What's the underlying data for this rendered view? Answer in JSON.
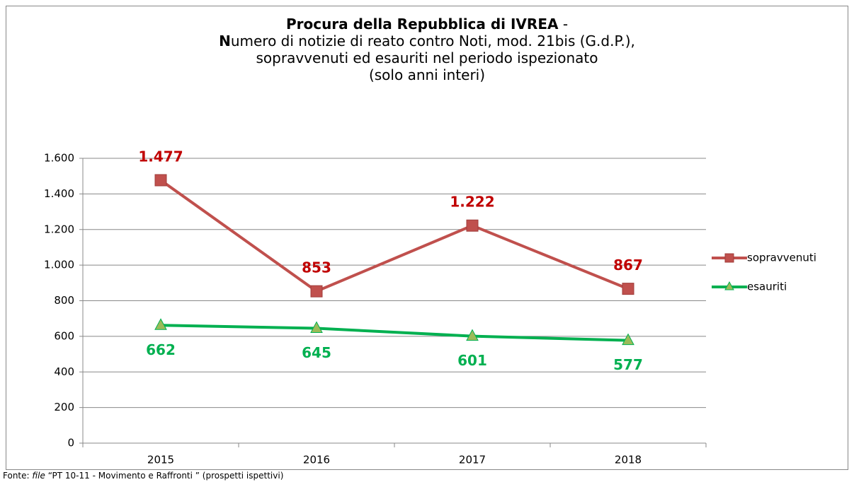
{
  "chart_data": {
    "type": "line",
    "title": "Procura della Repubblica di IVREA",
    "title_suffix": "-",
    "subtitle": [
      "Numero di notizie di reato contro Noti, mod. 21bis (G.d.P.),",
      "sopravvenuti ed esauriti nel periodo ispezionato",
      "(solo anni interi)"
    ],
    "categories": [
      "2015",
      "2016",
      "2017",
      "2018"
    ],
    "series": [
      {
        "name": "sopravvenuti",
        "color": "#c0504d",
        "label_color": "#c00000",
        "marker": "square",
        "values": [
          1477,
          853,
          1222,
          867
        ],
        "value_labels": [
          "1.477",
          "853",
          "1.222",
          "867"
        ]
      },
      {
        "name": "esauriti",
        "color": "#00b050",
        "marker_fill": "#9bbb59",
        "label_color": "#00b050",
        "marker": "triangle",
        "values": [
          662,
          645,
          601,
          577
        ]
      }
    ],
    "ylim": [
      0,
      1600
    ],
    "yticks": [
      0,
      200,
      400,
      600,
      800,
      {
        "value": 1000,
        "label": "1.000"
      },
      {
        "value": 1200,
        "label": "1.200"
      },
      {
        "value": 1400,
        "label": "1.400"
      },
      {
        "value": 1600,
        "label": "1.600"
      }
    ],
    "grid": true,
    "legend": "right",
    "source": [
      "Fonte:",
      "file",
      "“PT 10-11 - Movimento e Raffronti ” (prospetti ispettivi)"
    ]
  }
}
